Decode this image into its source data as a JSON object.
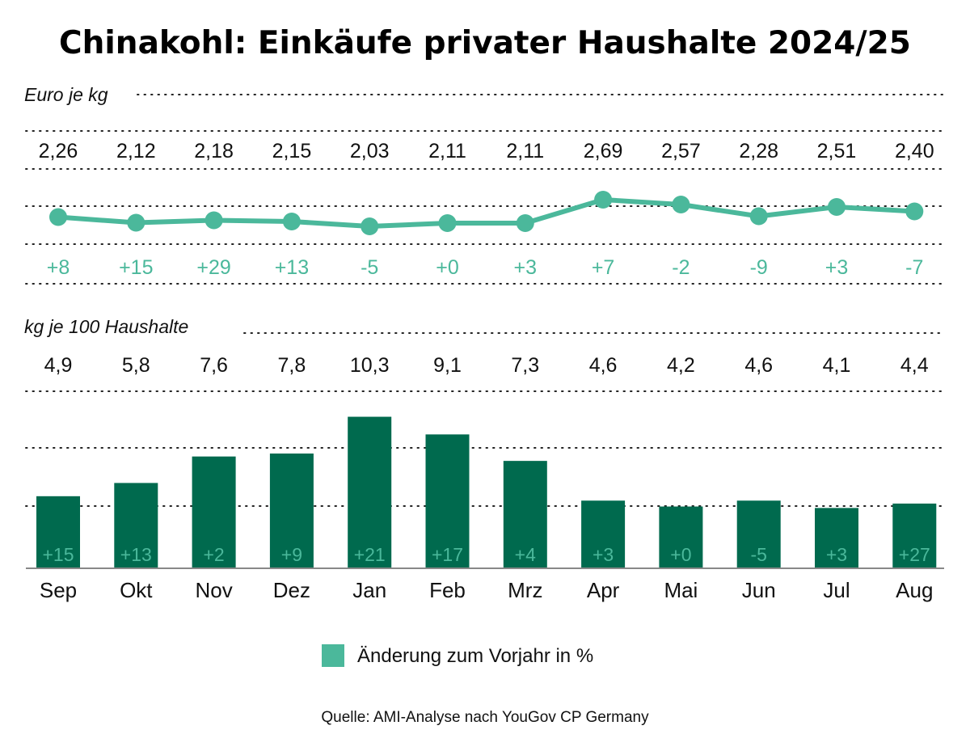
{
  "chart_data": [
    {
      "type": "line",
      "title": "Chinakohl: Einkäufe privater Haushalte 2024/25",
      "ylabel": "Euro je kg",
      "categories": [
        "Sep",
        "Okt",
        "Nov",
        "Dez",
        "Jan",
        "Feb",
        "Mrz",
        "Apr",
        "Mai",
        "Jun",
        "Jul",
        "Aug"
      ],
      "values": [
        2.26,
        2.12,
        2.18,
        2.15,
        2.03,
        2.11,
        2.11,
        2.69,
        2.57,
        2.28,
        2.51,
        2.4
      ],
      "value_labels": [
        "2,26",
        "2,12",
        "2,18",
        "2,15",
        "2,03",
        "2,11",
        "2,11",
        "2,69",
        "2,57",
        "2,28",
        "2,51",
        "2,40"
      ],
      "change_labels": [
        "+8",
        "+15",
        "+29",
        "+13",
        "-5",
        "+0",
        "+3",
        "+7",
        "-2",
        "-9",
        "+3",
        "-7"
      ],
      "color": "#4bb89b"
    },
    {
      "type": "bar",
      "ylabel": "kg je 100 Haushalte",
      "categories": [
        "Sep",
        "Okt",
        "Nov",
        "Dez",
        "Jan",
        "Feb",
        "Mrz",
        "Apr",
        "Mai",
        "Jun",
        "Jul",
        "Aug"
      ],
      "values": [
        4.9,
        5.8,
        7.6,
        7.8,
        10.3,
        9.1,
        7.3,
        4.6,
        4.2,
        4.6,
        4.1,
        4.4
      ],
      "value_labels": [
        "4,9",
        "5,8",
        "7,6",
        "7,8",
        "10,3",
        "9,1",
        "7,3",
        "4,6",
        "4,2",
        "4,6",
        "4,1",
        "4,4"
      ],
      "change_labels": [
        "+15",
        "+13",
        "+2",
        "+9",
        "+21",
        "+17",
        "+4",
        "+3",
        "+0",
        "-5",
        "+3",
        "+27"
      ],
      "ylim": [
        0,
        10.3
      ],
      "color": "#006a4e"
    }
  ],
  "legend": {
    "label": "Änderung zum Vorjahr in %",
    "color": "#4bb89b",
    "placement": "bottom-center"
  },
  "source": "Quelle: AMI-Analyse nach YouGov CP Germany"
}
